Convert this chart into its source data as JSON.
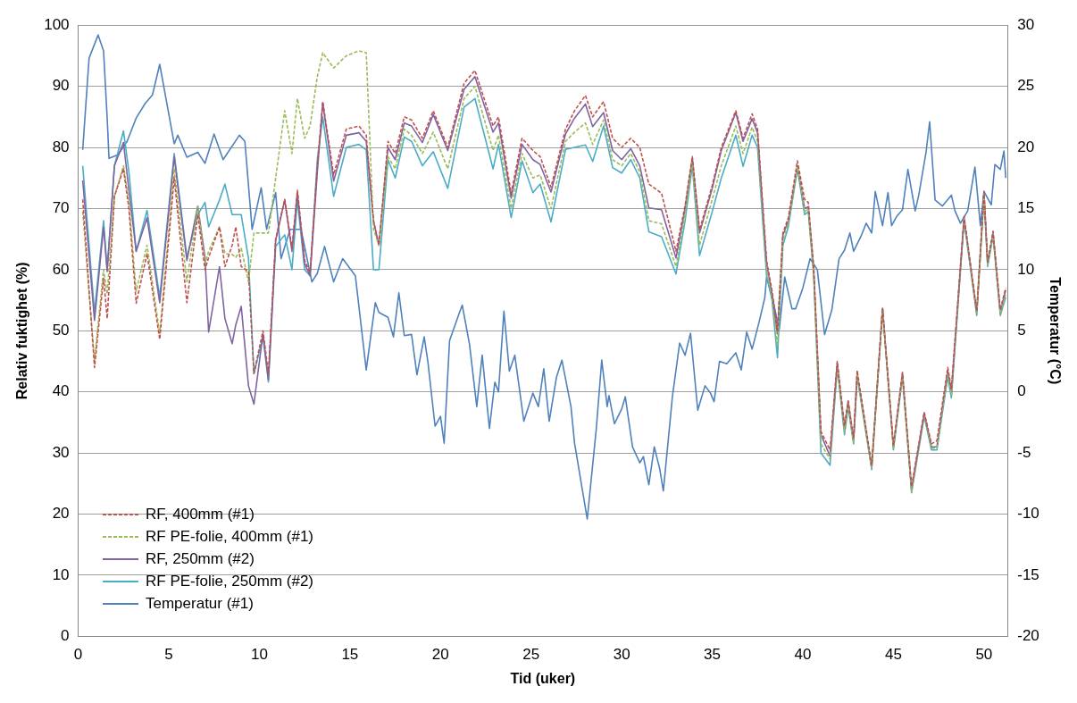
{
  "chart_data": {
    "type": "line",
    "xlabel": "Tid (uker)",
    "ylabel": "Relativ fuktighet (%)",
    "y2label": "Temperatur (°C)",
    "xlim": [
      0,
      51.3
    ],
    "xticks": [
      0,
      5,
      10,
      15,
      20,
      25,
      30,
      35,
      40,
      45,
      50
    ],
    "ylim": [
      0,
      100
    ],
    "yticks": [
      0,
      10,
      20,
      30,
      40,
      50,
      60,
      70,
      80,
      90,
      100
    ],
    "y2lim": [
      -20,
      30
    ],
    "y2ticks": [
      -20,
      -15,
      -10,
      -5,
      0,
      5,
      10,
      15,
      20,
      25,
      30
    ],
    "grid": "y",
    "legend": "bottom left",
    "marker": "none",
    "series": [
      {
        "name": "RF, 400mm (#1)",
        "color": "#c0504d",
        "line_style": "dashed",
        "x": [
          0.25,
          0.9,
          1.4,
          1.6,
          2.0,
          2.5,
          2.8,
          3.2,
          3.8,
          4.5,
          5.3,
          6.0,
          6.6,
          7.0,
          7.2,
          7.8,
          8.1,
          8.5,
          8.7,
          9.0,
          9.4,
          9.7,
          10.2,
          10.5,
          10.9,
          11.4,
          11.8,
          12.1,
          12.5,
          12.8,
          13.2,
          13.5,
          14.1,
          14.8,
          15.5,
          15.9,
          16.3,
          16.6,
          17.1,
          17.5,
          18.0,
          18.4,
          19.0,
          19.6,
          20.4,
          21.3,
          21.9,
          22.9,
          23.2,
          23.9,
          24.5,
          25.1,
          25.5,
          26.1,
          26.9,
          27.4,
          28.0,
          28.4,
          29.0,
          29.5,
          30.0,
          30.5,
          31.0,
          31.5,
          32.2,
          33.0,
          33.5,
          33.9,
          34.3,
          35.0,
          35.5,
          36.3,
          36.7,
          37.2,
          37.5,
          38.0,
          38.3,
          38.6,
          38.9,
          39.2,
          39.7,
          40.1,
          40.3,
          40.6,
          41.0,
          41.5,
          41.9,
          42.3,
          42.5,
          42.8,
          43.0,
          43.8,
          44.4,
          45.0,
          45.5,
          46.0,
          46.7,
          47.1,
          47.4,
          48.0,
          48.2,
          48.9,
          49.6,
          50.0,
          50.2,
          50.5,
          50.9,
          51.2
        ],
        "values": [
          71.5,
          44,
          58.6,
          52,
          72,
          76.5,
          70,
          54.5,
          62.6,
          48.6,
          75,
          54.6,
          69,
          60,
          62,
          67,
          60.5,
          64,
          67,
          60.5,
          59.7,
          43,
          50,
          43,
          65,
          71.5,
          63.5,
          73,
          61.5,
          59.5,
          77,
          87.5,
          75.5,
          83,
          83.5,
          82,
          68,
          64,
          81,
          79,
          85,
          84.5,
          81.5,
          86,
          80,
          90.5,
          92.6,
          83.5,
          85,
          72.5,
          81.5,
          79.5,
          78.5,
          73.5,
          83,
          86,
          88.5,
          85,
          87.5,
          81.5,
          80,
          81.5,
          80,
          74,
          72.5,
          63,
          70.5,
          78.5,
          66.5,
          73.8,
          80,
          86,
          81.5,
          85.5,
          83,
          61.5,
          56.5,
          50,
          66,
          68.5,
          77.8,
          71.5,
          71,
          60.5,
          33.5,
          30.5,
          45,
          34.5,
          38.5,
          32.5,
          43.5,
          28,
          53.7,
          31.2,
          43.2,
          24.5,
          36.7,
          31.5,
          32,
          44,
          40.5,
          68.7,
          53.3,
          72.8,
          61.3,
          66.3,
          53.5,
          57
        ]
      },
      {
        "name": "RF PE-folie, 400mm (#1)",
        "color": "#9bbb59",
        "line_style": "dashed",
        "x": [
          0.25,
          0.9,
          1.4,
          1.6,
          2.0,
          2.5,
          2.8,
          3.2,
          3.8,
          4.5,
          5.3,
          6.0,
          6.6,
          7.0,
          7.2,
          7.8,
          8.1,
          8.5,
          8.7,
          9.0,
          9.4,
          9.7,
          10.2,
          10.5,
          10.9,
          11.4,
          11.8,
          12.1,
          12.5,
          12.8,
          13.2,
          13.5,
          14.1,
          14.8,
          15.5,
          15.9,
          16.3,
          16.6,
          17.1,
          17.5,
          18.0,
          18.4,
          19.0,
          19.6,
          20.4,
          21.3,
          21.9,
          22.9,
          23.2,
          23.9,
          24.5,
          25.1,
          25.5,
          26.1,
          26.9,
          27.4,
          28.0,
          28.4,
          29.0,
          29.5,
          30.0,
          30.5,
          31.0,
          31.5,
          32.2,
          33.0,
          33.5,
          33.9,
          34.3,
          35.0,
          35.5,
          36.3,
          36.7,
          37.2,
          37.5,
          38.0,
          38.3,
          38.6,
          38.9,
          39.2,
          39.7,
          40.1,
          40.3,
          40.6,
          41.0,
          41.5,
          41.9,
          42.3,
          42.5,
          42.8,
          43.0,
          43.8,
          44.4,
          45.0,
          45.5,
          46.0,
          46.7,
          47.1,
          47.4,
          48.0,
          48.2,
          48.9,
          49.6,
          50.0,
          50.2,
          50.5,
          50.9,
          51.2
        ],
        "values": [
          69.5,
          45,
          60,
          56,
          72,
          77,
          71,
          56.5,
          64,
          49.5,
          76.5,
          58,
          70.4,
          61,
          63,
          67,
          62.6,
          62.5,
          62,
          63.5,
          58,
          66,
          66,
          66,
          75,
          86,
          79,
          88,
          81.5,
          83.5,
          91.6,
          95.5,
          93,
          95,
          95.8,
          95.5,
          66.6,
          64,
          78.5,
          76.5,
          83,
          82,
          79,
          82.5,
          76.5,
          88,
          90,
          79.5,
          82,
          70,
          79,
          75,
          75.5,
          70,
          81,
          82.5,
          84,
          80.5,
          84.5,
          78,
          77,
          79,
          76,
          68,
          67.5,
          60.5,
          69,
          77.5,
          64,
          71.5,
          77,
          83.5,
          79,
          83.3,
          81,
          60,
          55.5,
          47.5,
          65,
          67.5,
          76.8,
          69.5,
          70,
          59.5,
          31.5,
          29,
          44.3,
          33.5,
          38,
          31.8,
          42.8,
          27.5,
          53.6,
          30.8,
          42.8,
          23.8,
          36.3,
          30.8,
          30.8,
          43,
          39.5,
          68.3,
          52.8,
          72.3,
          60.8,
          65.8,
          52.8,
          56
        ]
      },
      {
        "name": "RF, 250mm (#2)",
        "color": "#8064a2",
        "line_style": "solid",
        "x": [
          0.25,
          0.9,
          1.4,
          1.6,
          2.0,
          2.5,
          2.8,
          3.2,
          3.8,
          4.5,
          5.3,
          6.0,
          6.6,
          7.0,
          7.2,
          7.8,
          8.1,
          8.5,
          8.7,
          9.0,
          9.4,
          9.7,
          10.2,
          10.5,
          10.9,
          11.4,
          11.8,
          12.1,
          12.5,
          12.8,
          13.2,
          13.5,
          14.1,
          14.8,
          15.5,
          15.9,
          16.3,
          16.6,
          17.1,
          17.5,
          18.0,
          18.4,
          19.0,
          19.6,
          20.4,
          21.3,
          21.9,
          22.9,
          23.2,
          23.9,
          24.5,
          25.1,
          25.5,
          26.1,
          26.9,
          27.4,
          28.0,
          28.4,
          29.0,
          29.5,
          30.0,
          30.5,
          31.0,
          31.5,
          32.2,
          33.0,
          33.5,
          33.9,
          34.3,
          35.0,
          35.5,
          36.3,
          36.7,
          37.2,
          37.5,
          38.0,
          38.3,
          38.6,
          38.9,
          39.2,
          39.7,
          40.1,
          40.3,
          40.6,
          41.0,
          41.5,
          41.9,
          42.3,
          42.5,
          42.8,
          43.0,
          43.8,
          44.4,
          45.0,
          45.5,
          46.0,
          46.7,
          47.1,
          47.4,
          48.0,
          48.2,
          48.9,
          49.6,
          50.0,
          50.2,
          50.5,
          50.9,
          51.2
        ],
        "values": [
          74.6,
          51.7,
          67,
          59.7,
          77,
          80.8,
          73,
          63,
          68.5,
          54.6,
          78.5,
          61.5,
          70.4,
          62,
          49.8,
          60.5,
          52,
          47.9,
          51,
          54,
          41,
          38,
          49.5,
          42,
          64.8,
          71.4,
          63,
          72.6,
          61,
          59,
          76,
          87.3,
          74.5,
          82,
          82.4,
          81,
          68,
          64,
          80,
          78,
          84,
          83.5,
          80.8,
          85.4,
          79.5,
          89.5,
          91.6,
          82.5,
          84,
          71.7,
          80.5,
          78,
          77.2,
          72.7,
          82.2,
          84.8,
          87.1,
          83.4,
          85.7,
          79.5,
          78,
          79.8,
          77,
          70.1,
          69.8,
          61.9,
          70,
          78.2,
          66,
          73.3,
          79.5,
          85.7,
          81,
          84.7,
          82.4,
          60.9,
          56,
          49.4,
          65.6,
          68,
          77,
          70,
          70.3,
          59.9,
          33,
          29.5,
          44.7,
          34,
          38.5,
          32,
          43,
          27.7,
          53.7,
          31,
          43,
          24,
          36.5,
          31,
          31,
          43.5,
          40,
          68.5,
          53,
          72.6,
          61,
          66,
          53,
          56.7
        ]
      },
      {
        "name": "RF PE-folie, 250mm (#2)",
        "color": "#4bacc6",
        "line_style": "solid",
        "x": [
          0.25,
          0.9,
          1.4,
          1.6,
          2.0,
          2.5,
          2.8,
          3.2,
          3.8,
          4.5,
          5.3,
          6.0,
          6.6,
          7.0,
          7.2,
          7.8,
          8.1,
          8.5,
          8.7,
          9.0,
          9.4,
          9.7,
          10.2,
          10.5,
          10.9,
          11.4,
          11.8,
          12.1,
          12.5,
          12.8,
          13.2,
          13.5,
          14.1,
          14.8,
          15.5,
          15.9,
          16.3,
          16.6,
          17.1,
          17.5,
          18.0,
          18.4,
          19.0,
          19.6,
          20.4,
          21.3,
          21.9,
          22.9,
          23.2,
          23.9,
          24.5,
          25.1,
          25.5,
          26.1,
          26.9,
          27.4,
          28.0,
          28.4,
          29.0,
          29.5,
          30.0,
          30.5,
          31.0,
          31.5,
          32.2,
          33.0,
          33.5,
          33.9,
          34.3,
          35.0,
          35.5,
          36.3,
          36.7,
          37.2,
          37.5,
          38.0,
          38.3,
          38.6,
          38.9,
          39.2,
          39.7,
          40.1,
          40.3,
          40.6,
          41.0,
          41.5,
          41.9,
          42.3,
          42.5,
          42.8,
          43.0,
          43.8,
          44.4,
          45.0,
          45.5,
          46.0,
          46.7,
          47.1,
          47.4,
          48.0,
          48.2,
          48.9,
          49.6,
          50.0,
          50.2,
          50.5,
          50.9,
          51.2
        ],
        "values": [
          77,
          53,
          68,
          60,
          77,
          82.7,
          76,
          63,
          69.7,
          55.5,
          79,
          62,
          69,
          71,
          67,
          71.4,
          74,
          69,
          69,
          69,
          61.8,
          43,
          49,
          41.6,
          63.8,
          65.7,
          60,
          71.4,
          60,
          59,
          78,
          85,
          72,
          80,
          80.5,
          79.6,
          60,
          60,
          78,
          75,
          81.7,
          81,
          77,
          79.3,
          73.3,
          86.6,
          88,
          76.5,
          80.5,
          68.5,
          77.8,
          72.6,
          74,
          67.8,
          79.7,
          80,
          80.4,
          77.7,
          83.5,
          76.7,
          75.8,
          78,
          75,
          66.2,
          65.4,
          59.3,
          68,
          77,
          62.3,
          69.5,
          75,
          82,
          76.9,
          82,
          80,
          59,
          55,
          45.6,
          64,
          67,
          76.5,
          69,
          69.5,
          59,
          30,
          28,
          44,
          33,
          37.5,
          31.5,
          42.5,
          27.3,
          53.5,
          30.5,
          42.5,
          23.5,
          36,
          30.5,
          30.5,
          42.5,
          39,
          68,
          52.5,
          72,
          60.5,
          65.5,
          52.5,
          55.5
        ]
      },
      {
        "name": "Temperatur (#1)",
        "color": "#4f81bd",
        "line_style": "solid",
        "axis": "y2",
        "x": [
          0.25,
          0.6,
          1.1,
          1.4,
          1.6,
          1.7,
          2.2,
          2.7,
          3.2,
          3.7,
          4.1,
          4.5,
          5.3,
          5.5,
          6.0,
          6.6,
          7.0,
          7.5,
          8.0,
          8.9,
          9.2,
          9.6,
          10.1,
          10.4,
          10.9,
          11.2,
          11.7,
          12.3,
          12.9,
          13.2,
          13.6,
          14.1,
          14.6,
          15.3,
          15.9,
          16.4,
          16.6,
          17.1,
          17.4,
          17.7,
          18.0,
          18.4,
          18.7,
          19.1,
          19.3,
          19.7,
          20.0,
          20.2,
          20.5,
          21.0,
          21.2,
          21.6,
          22.0,
          22.3,
          22.7,
          23.0,
          23.2,
          23.5,
          23.8,
          24.1,
          24.6,
          25.1,
          25.4,
          25.7,
          26.0,
          26.4,
          26.7,
          27.2,
          27.4,
          28.1,
          28.6,
          28.9,
          29.2,
          29.3,
          29.6,
          30.0,
          30.2,
          30.6,
          31.0,
          31.2,
          31.5,
          31.8,
          32.1,
          32.3,
          32.8,
          33.2,
          33.5,
          33.8,
          34.2,
          34.6,
          34.9,
          35.1,
          35.4,
          35.8,
          36.3,
          36.6,
          36.9,
          37.2,
          37.6,
          37.9,
          38.0,
          38.3,
          38.7,
          39.0,
          39.4,
          39.6,
          40.0,
          40.4,
          40.8,
          41.2,
          41.6,
          42.0,
          42.3,
          42.6,
          42.8,
          43.2,
          43.5,
          43.8,
          44.0,
          44.4,
          44.7,
          44.9,
          45.2,
          45.5,
          45.8,
          46.2,
          46.4,
          46.8,
          47.0,
          47.3,
          47.7,
          48.2,
          48.4,
          48.7,
          49.1,
          49.5,
          49.8,
          50.0,
          50.4,
          50.6,
          50.9,
          51.1,
          51.2
        ],
        "values": [
          19.8,
          27.3,
          29.2,
          27.9,
          22.4,
          19.1,
          19.4,
          20.5,
          22.4,
          23.6,
          24.3,
          26.8,
          20.3,
          21.0,
          19.2,
          19.6,
          18.7,
          21.1,
          19,
          21,
          20.5,
          13.3,
          16.7,
          13.3,
          16.3,
          10.9,
          13.3,
          13.3,
          9,
          9.7,
          11.9,
          9,
          10.9,
          9.5,
          1.8,
          7.3,
          6.5,
          6.1,
          4.5,
          8.1,
          4.6,
          4.7,
          1.4,
          4.5,
          2.5,
          -2.8,
          -2,
          -4.2,
          4.2,
          6.3,
          7.1,
          3.9,
          -1.2,
          3.0,
          -3.0,
          0.8,
          0,
          6.6,
          1.7,
          3.0,
          -2.4,
          -0.1,
          -1.2,
          1.9,
          -2.4,
          1.2,
          2.6,
          -1.2,
          -4.2,
          -10.4,
          -3.0,
          2.6,
          -1.2,
          -0.3,
          -2.6,
          -1.4,
          -0.4,
          -4.5,
          -5.8,
          -5.3,
          -7.6,
          -4.5,
          -6.3,
          -8.1,
          -0.4,
          4.0,
          3.0,
          4.8,
          -1.5,
          0.5,
          -0.1,
          -0.8,
          2.5,
          2.3,
          3.2,
          1.8,
          4.9,
          3.5,
          5.8,
          7.7,
          9.4,
          7.8,
          5.1,
          9.4,
          6.8,
          6.8,
          8.5,
          10.9,
          10.0,
          4.7,
          6.7,
          10.9,
          11.6,
          13.0,
          11.5,
          12.7,
          13.8,
          13.0,
          16.4,
          13.6,
          16.3,
          13.6,
          14.4,
          14.9,
          18.2,
          14.8,
          16.1,
          19.6,
          22.1,
          15.7,
          15.2,
          16.1,
          14.8,
          13.8,
          14.8,
          18.4,
          13.6,
          16.4,
          15.3,
          18.6,
          18.2,
          19.7,
          17.5
        ]
      }
    ]
  }
}
